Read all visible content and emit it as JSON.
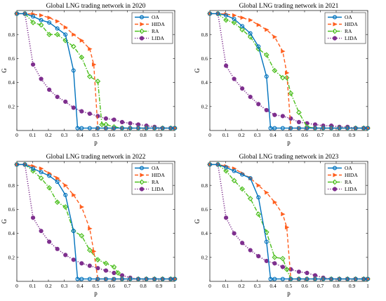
{
  "figure": {
    "colors": {
      "OA": "#0072BD",
      "HIDA": "#FF5F1F",
      "RA": "#4DBF1F",
      "LIDA": "#7E2F8E"
    },
    "markers": {
      "OA": "circle",
      "HIDA": "triangle-right",
      "RA": "diamond",
      "LIDA": "filled-circle"
    },
    "line_styles": {
      "OA": "solid",
      "HIDA": "dashed",
      "RA": "dash-dot",
      "LIDA": "dotted"
    }
  },
  "chart_data": [
    {
      "type": "line",
      "title": "Global LNG trading network in 2020",
      "xlabel": "p",
      "ylabel": "G",
      "xlim": [
        0,
        1
      ],
      "ylim": [
        0,
        1
      ],
      "xticks": [
        "0",
        "0.1",
        "0.2",
        "0.3",
        "0.4",
        "0.5",
        "0.6",
        "0.7",
        "0.8",
        "0.9",
        "1"
      ],
      "yticks": [
        "0.2",
        "0.4",
        "0.6",
        "0.8"
      ],
      "legend_position": "top-right",
      "grid": false,
      "series": [
        {
          "name": "OA",
          "x": [
            0,
            0.0513,
            0.1026,
            0.1538,
            0.2051,
            0.2564,
            0.3077,
            0.359,
            0.3846,
            0.4103,
            0.4615,
            0.5128,
            0.5641,
            0.6154,
            0.6667,
            0.7179,
            0.7692,
            0.8205,
            0.8718,
            0.9231,
            0.9744,
            1
          ],
          "y": [
            0.974,
            0.974,
            0.95,
            0.92,
            0.9,
            0.85,
            0.8,
            0.5,
            0.02,
            0.02,
            0.02,
            0.02,
            0.02,
            0.02,
            0.02,
            0.02,
            0.02,
            0.02,
            0.02,
            0.02,
            0.02,
            0.02
          ]
        },
        {
          "name": "HIDA",
          "x": [
            0,
            0.0513,
            0.1026,
            0.1538,
            0.2051,
            0.2564,
            0.3077,
            0.359,
            0.4103,
            0.4615,
            0.4872,
            0.5128,
            0.5641,
            0.6154,
            0.6667,
            0.7179,
            0.7692,
            0.8205,
            0.8718,
            0.9231,
            0.9744,
            1
          ],
          "y": [
            0.974,
            0.974,
            0.97,
            0.96,
            0.94,
            0.91,
            0.86,
            0.8,
            0.75,
            0.68,
            0.55,
            0.02,
            0.02,
            0.02,
            0.02,
            0.02,
            0.02,
            0.02,
            0.02,
            0.02,
            0.02,
            0.02
          ]
        },
        {
          "name": "RA",
          "x": [
            0,
            0.0513,
            0.1026,
            0.1538,
            0.2051,
            0.2564,
            0.3077,
            0.359,
            0.4103,
            0.4615,
            0.5128,
            0.5385,
            0.5641,
            0.6154,
            0.6667,
            0.7179,
            0.7692,
            0.8205,
            0.8718,
            0.9231,
            0.9744,
            1
          ],
          "y": [
            0.974,
            0.974,
            0.9,
            0.88,
            0.8,
            0.8,
            0.75,
            0.7,
            0.61,
            0.45,
            0.41,
            0.05,
            0.05,
            0.03,
            0.02,
            0.02,
            0.02,
            0.02,
            0.02,
            0.02,
            0.02,
            0.02
          ]
        },
        {
          "name": "LIDA",
          "x": [
            0,
            0.0513,
            0.1026,
            0.1538,
            0.2051,
            0.2564,
            0.3077,
            0.359,
            0.4103,
            0.4615,
            0.5128,
            0.5641,
            0.6154,
            0.6667,
            0.7179,
            0.7692,
            0.8205,
            0.8718,
            0.9231,
            0.9744,
            1
          ],
          "y": [
            0.974,
            0.974,
            0.55,
            0.43,
            0.34,
            0.28,
            0.24,
            0.19,
            0.16,
            0.14,
            0.12,
            0.1,
            0.09,
            0.07,
            0.06,
            0.05,
            0.04,
            0.03,
            0.02,
            0.02,
            0.02
          ]
        }
      ]
    },
    {
      "type": "line",
      "title": "Global LNG trading network in 2021",
      "xlabel": "p",
      "ylabel": "G",
      "xlim": [
        0,
        1
      ],
      "ylim": [
        0,
        1
      ],
      "xticks": [
        "0",
        "0.1",
        "0.2",
        "0.3",
        "0.4",
        "0.5",
        "0.6",
        "0.7",
        "0.8",
        "0.9",
        "1"
      ],
      "yticks": [
        "0.2",
        "0.4",
        "0.6",
        "0.8"
      ],
      "legend_position": "top-right",
      "grid": false,
      "series": [
        {
          "name": "OA",
          "x": [
            0,
            0.0513,
            0.1026,
            0.1538,
            0.2051,
            0.2564,
            0.3077,
            0.359,
            0.3846,
            0.4103,
            0.4615,
            0.5128,
            0.5641,
            0.6154,
            0.6667,
            0.7179,
            0.7692,
            0.8205,
            0.8718,
            0.9231,
            0.9744,
            1
          ],
          "y": [
            0.974,
            0.974,
            0.96,
            0.93,
            0.87,
            0.81,
            0.7,
            0.45,
            0.02,
            0.02,
            0.02,
            0.02,
            0.02,
            0.02,
            0.02,
            0.02,
            0.02,
            0.02,
            0.02,
            0.02,
            0.02,
            0.02
          ]
        },
        {
          "name": "HIDA",
          "x": [
            0,
            0.0513,
            0.1026,
            0.1538,
            0.2051,
            0.2564,
            0.3077,
            0.359,
            0.4103,
            0.4615,
            0.4872,
            0.5128,
            0.5641,
            0.6154,
            0.6667,
            0.7179,
            0.7692,
            0.8205,
            0.8718,
            0.9231,
            0.9744,
            1
          ],
          "y": [
            0.974,
            0.974,
            0.97,
            0.96,
            0.94,
            0.92,
            0.88,
            0.84,
            0.78,
            0.66,
            0.48,
            0.02,
            0.02,
            0.02,
            0.02,
            0.02,
            0.02,
            0.02,
            0.02,
            0.02,
            0.02,
            0.02
          ]
        },
        {
          "name": "RA",
          "x": [
            0,
            0.0513,
            0.1026,
            0.1538,
            0.2051,
            0.2564,
            0.3077,
            0.359,
            0.4103,
            0.4615,
            0.4872,
            0.5128,
            0.5641,
            0.6154,
            0.6667,
            0.7179,
            0.7692,
            0.8205,
            0.8718,
            0.9231,
            0.9744,
            1
          ],
          "y": [
            0.974,
            0.974,
            0.92,
            0.9,
            0.84,
            0.78,
            0.68,
            0.63,
            0.5,
            0.44,
            0.44,
            0.31,
            0.15,
            0.03,
            0.02,
            0.02,
            0.02,
            0.02,
            0.02,
            0.02,
            0.02,
            0.02
          ]
        },
        {
          "name": "LIDA",
          "x": [
            0,
            0.0513,
            0.1026,
            0.1538,
            0.2051,
            0.2564,
            0.3077,
            0.359,
            0.4103,
            0.4615,
            0.5128,
            0.5641,
            0.6154,
            0.6667,
            0.7179,
            0.7692,
            0.8205,
            0.8718,
            0.9231,
            0.9744,
            1
          ],
          "y": [
            0.974,
            0.974,
            0.54,
            0.43,
            0.35,
            0.28,
            0.22,
            0.17,
            0.13,
            0.12,
            0.1,
            0.07,
            0.06,
            0.05,
            0.04,
            0.04,
            0.03,
            0.03,
            0.02,
            0.02,
            0.02
          ]
        }
      ]
    },
    {
      "type": "line",
      "title": "Global LNG trading network in 2022",
      "xlabel": "p",
      "ylabel": "G",
      "xlim": [
        0,
        1
      ],
      "ylim": [
        0,
        1
      ],
      "xticks": [
        "0",
        "0.1",
        "0.2",
        "0.3",
        "0.4",
        "0.5",
        "0.6",
        "0.7",
        "0.8",
        "0.9",
        "1"
      ],
      "yticks": [
        "0.2",
        "0.4",
        "0.6",
        "0.8"
      ],
      "legend_position": "top-right",
      "grid": false,
      "series": [
        {
          "name": "OA",
          "x": [
            0,
            0.0513,
            0.1026,
            0.1538,
            0.2051,
            0.2564,
            0.3077,
            0.359,
            0.3846,
            0.4103,
            0.4615,
            0.5128,
            0.5641,
            0.6154,
            0.6667,
            0.7179,
            0.7692,
            0.8205,
            0.8718,
            0.9231,
            0.9744,
            1
          ],
          "y": [
            0.974,
            0.974,
            0.94,
            0.91,
            0.88,
            0.83,
            0.72,
            0.42,
            0.02,
            0.02,
            0.02,
            0.02,
            0.02,
            0.02,
            0.02,
            0.02,
            0.02,
            0.02,
            0.02,
            0.02,
            0.02,
            0.02
          ]
        },
        {
          "name": "HIDA",
          "x": [
            0,
            0.0513,
            0.1026,
            0.1538,
            0.2051,
            0.2564,
            0.3077,
            0.359,
            0.4103,
            0.4615,
            0.4872,
            0.5128,
            0.5641,
            0.6154,
            0.6667,
            0.7179,
            0.7692,
            0.8205,
            0.8718,
            0.9231,
            0.9744,
            1
          ],
          "y": [
            0.974,
            0.974,
            0.96,
            0.94,
            0.9,
            0.86,
            0.8,
            0.72,
            0.62,
            0.44,
            0.25,
            0.02,
            0.02,
            0.02,
            0.02,
            0.02,
            0.02,
            0.02,
            0.02,
            0.02,
            0.02,
            0.02
          ]
        },
        {
          "name": "RA",
          "x": [
            0,
            0.0513,
            0.1026,
            0.1538,
            0.2051,
            0.2564,
            0.3077,
            0.359,
            0.4103,
            0.4615,
            0.5128,
            0.5641,
            0.6154,
            0.641,
            0.6667,
            0.7179,
            0.7692,
            0.8205,
            0.8718,
            0.9231,
            0.9744,
            1
          ],
          "y": [
            0.974,
            0.974,
            0.92,
            0.86,
            0.78,
            0.66,
            0.62,
            0.42,
            0.38,
            0.26,
            0.18,
            0.15,
            0.12,
            0.07,
            0.02,
            0.02,
            0.02,
            0.02,
            0.02,
            0.02,
            0.02,
            0.02
          ]
        },
        {
          "name": "LIDA",
          "x": [
            0,
            0.0513,
            0.1026,
            0.1538,
            0.2051,
            0.2564,
            0.3077,
            0.359,
            0.4103,
            0.4615,
            0.5128,
            0.5641,
            0.6154,
            0.6667,
            0.7179,
            0.7692,
            0.8205,
            0.8718,
            0.9231,
            0.9744,
            1
          ],
          "y": [
            0.974,
            0.974,
            0.53,
            0.42,
            0.33,
            0.27,
            0.22,
            0.18,
            0.15,
            0.13,
            0.11,
            0.09,
            0.07,
            0.05,
            0.03,
            0.02,
            0.02,
            0.02,
            0.02,
            0.02,
            0.02
          ]
        }
      ]
    },
    {
      "type": "line",
      "title": "Global LNG trading network in 2023",
      "xlabel": "p",
      "ylabel": "G",
      "xlim": [
        0,
        1
      ],
      "ylim": [
        0,
        1
      ],
      "xticks": [
        "0",
        "0.1",
        "0.2",
        "0.3",
        "0.4",
        "0.5",
        "0.6",
        "0.7",
        "0.8",
        "0.9",
        "1"
      ],
      "yticks": [
        "0.2",
        "0.4",
        "0.6",
        "0.8"
      ],
      "legend_position": "top-right",
      "grid": false,
      "series": [
        {
          "name": "OA",
          "x": [
            0,
            0.0513,
            0.1026,
            0.1538,
            0.2051,
            0.2564,
            0.3077,
            0.359,
            0.3846,
            0.4103,
            0.4615,
            0.5128,
            0.5641,
            0.6154,
            0.6667,
            0.7179,
            0.7692,
            0.8205,
            0.8718,
            0.9231,
            0.9744,
            1
          ],
          "y": [
            0.974,
            0.974,
            0.95,
            0.92,
            0.89,
            0.86,
            0.7,
            0.33,
            0.02,
            0.02,
            0.02,
            0.02,
            0.02,
            0.02,
            0.02,
            0.02,
            0.02,
            0.02,
            0.02,
            0.02,
            0.02,
            0.02
          ]
        },
        {
          "name": "HIDA",
          "x": [
            0,
            0.0513,
            0.1026,
            0.1538,
            0.2051,
            0.2564,
            0.3077,
            0.359,
            0.4103,
            0.4615,
            0.4872,
            0.5128,
            0.5641,
            0.6154,
            0.6667,
            0.7179,
            0.7692,
            0.8205,
            0.8718,
            0.9231,
            0.9744,
            1
          ],
          "y": [
            0.974,
            0.974,
            0.96,
            0.94,
            0.9,
            0.86,
            0.8,
            0.74,
            0.66,
            0.56,
            0.45,
            0.02,
            0.02,
            0.02,
            0.02,
            0.02,
            0.02,
            0.02,
            0.02,
            0.02,
            0.02,
            0.02
          ]
        },
        {
          "name": "RA",
          "x": [
            0,
            0.0513,
            0.1026,
            0.1538,
            0.2051,
            0.2564,
            0.3077,
            0.359,
            0.4103,
            0.4615,
            0.4872,
            0.5128,
            0.5641,
            0.6154,
            0.6667,
            0.7179,
            0.7692,
            0.8205,
            0.8718,
            0.9231,
            0.9744,
            1
          ],
          "y": [
            0.974,
            0.974,
            0.92,
            0.84,
            0.77,
            0.69,
            0.56,
            0.41,
            0.2,
            0.19,
            0.1,
            0.02,
            0.02,
            0.02,
            0.02,
            0.02,
            0.02,
            0.02,
            0.02,
            0.02,
            0.02,
            0.02
          ]
        },
        {
          "name": "LIDA",
          "x": [
            0,
            0.0513,
            0.1026,
            0.1538,
            0.2051,
            0.2564,
            0.3077,
            0.359,
            0.4103,
            0.4615,
            0.5128,
            0.5641,
            0.6154,
            0.6667,
            0.7179,
            0.7692,
            0.8205,
            0.8718,
            0.9231,
            0.9744,
            1
          ],
          "y": [
            0.974,
            0.974,
            0.53,
            0.4,
            0.32,
            0.26,
            0.21,
            0.17,
            0.15,
            0.12,
            0.1,
            0.08,
            0.07,
            0.05,
            0.03,
            0.02,
            0.02,
            0.02,
            0.02,
            0.02,
            0.02
          ]
        }
      ]
    }
  ]
}
